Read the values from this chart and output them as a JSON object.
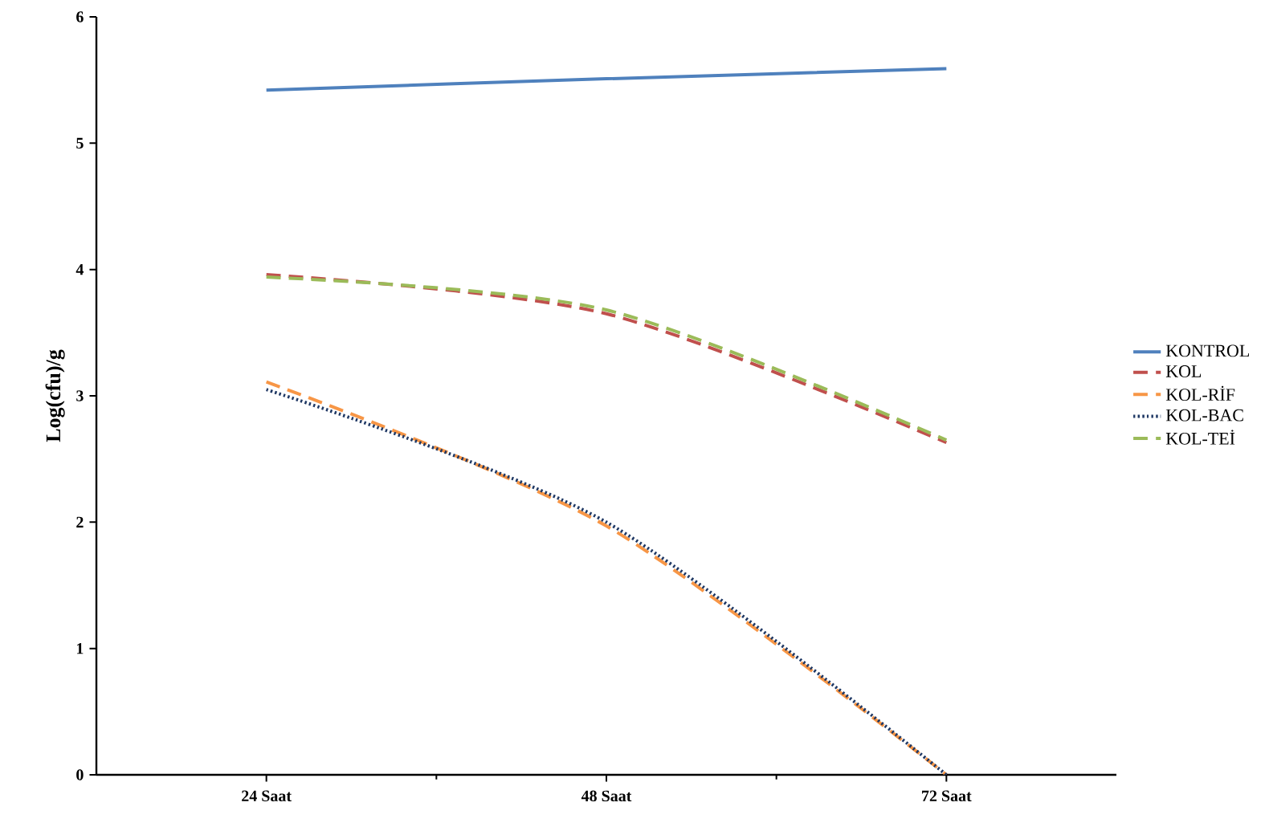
{
  "chart_data": {
    "type": "line",
    "ylabel": "Log(cfu)/g",
    "categories": [
      "24 Saat",
      "48 Saat",
      "72 Saat"
    ],
    "ylim": [
      0,
      6
    ],
    "yticks": [
      0,
      1,
      2,
      3,
      4,
      5,
      6
    ],
    "legend": "right",
    "grid": false,
    "marker": "none",
    "series": [
      {
        "name": "KONTROL",
        "color": "#4f81bd",
        "line_style": "solid",
        "values": [
          5.42,
          5.51,
          5.59
        ]
      },
      {
        "name": "KOL",
        "color": "#c0504d",
        "line_style": "dashed",
        "values": [
          3.96,
          3.65,
          2.63
        ]
      },
      {
        "name": "KOL-RİF",
        "color": "#f79646",
        "line_style": "dashed",
        "values": [
          3.11,
          1.97,
          0
        ]
      },
      {
        "name": "KOL-BAC",
        "color": "#1f3864",
        "line_style": "dotted",
        "values": [
          3.05,
          2.0,
          0
        ]
      },
      {
        "name": "KOL-TEİ",
        "color": "#9bbb59",
        "line_style": "dashed",
        "values": [
          3.94,
          3.68,
          2.65
        ]
      }
    ]
  }
}
